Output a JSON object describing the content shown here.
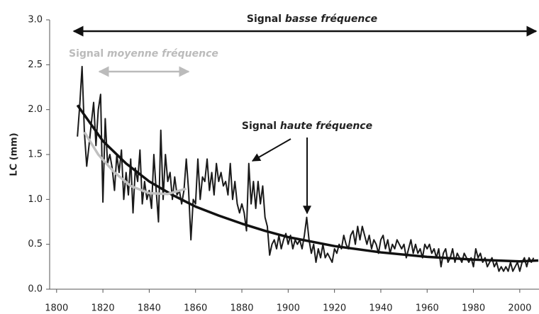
{
  "chart_data": {
    "type": "line",
    "y_label": "LC (mm)",
    "xlim": [
      1797,
      2008
    ],
    "ylim": [
      0,
      3
    ],
    "xticks": [
      1800,
      1820,
      1840,
      1860,
      1880,
      1900,
      1920,
      1940,
      1960,
      1980,
      2000
    ],
    "yticks": [
      {
        "value": 0,
        "label": "0.0"
      },
      0.5,
      {
        "value": 1,
        "label": "1.0"
      },
      1.5,
      {
        "value": 2,
        "label": "2.0"
      },
      2.5,
      {
        "value": 3,
        "label": "3.0"
      }
    ],
    "color": "#1a1a1a",
    "x": [
      1809,
      1810,
      1811,
      1812,
      1813,
      1814,
      1815,
      1816,
      1817,
      1818,
      1819,
      1820,
      1821,
      1822,
      1823,
      1824,
      1825,
      1826,
      1827,
      1828,
      1829,
      1830,
      1831,
      1832,
      1833,
      1834,
      1835,
      1836,
      1837,
      1838,
      1839,
      1840,
      1841,
      1842,
      1843,
      1844,
      1845,
      1846,
      1847,
      1848,
      1849,
      1850,
      1851,
      1852,
      1853,
      1854,
      1855,
      1856,
      1857,
      1858,
      1859,
      1860,
      1861,
      1862,
      1863,
      1864,
      1865,
      1866,
      1867,
      1868,
      1869,
      1870,
      1871,
      1872,
      1873,
      1874,
      1875,
      1876,
      1877,
      1878,
      1879,
      1880,
      1881,
      1882,
      1883,
      1884,
      1885,
      1886,
      1887,
      1888,
      1889,
      1890,
      1891,
      1892,
      1893,
      1894,
      1895,
      1896,
      1897,
      1898,
      1899,
      1900,
      1901,
      1902,
      1903,
      1904,
      1905,
      1906,
      1907,
      1908,
      1909,
      1910,
      1911,
      1912,
      1913,
      1914,
      1915,
      1916,
      1917,
      1918,
      1919,
      1920,
      1921,
      1922,
      1923,
      1924,
      1925,
      1926,
      1927,
      1928,
      1929,
      1930,
      1931,
      1932,
      1933,
      1934,
      1935,
      1936,
      1937,
      1938,
      1939,
      1940,
      1941,
      1942,
      1943,
      1944,
      1945,
      1946,
      1947,
      1948,
      1949,
      1950,
      1951,
      1952,
      1953,
      1954,
      1955,
      1956,
      1957,
      1958,
      1959,
      1960,
      1961,
      1962,
      1963,
      1964,
      1965,
      1966,
      1967,
      1968,
      1969,
      1970,
      1971,
      1972,
      1973,
      1974,
      1975,
      1976,
      1977,
      1978,
      1979,
      1980,
      1981,
      1982,
      1983,
      1984,
      1985,
      1986,
      1987,
      1988,
      1989,
      1990,
      1991,
      1992,
      1993,
      1994,
      1995,
      1996,
      1997,
      1998,
      1999,
      2000,
      2001,
      2002,
      2003,
      2004,
      2005,
      2006
    ],
    "values": [
      1.7,
      2.05,
      2.48,
      1.75,
      1.37,
      1.6,
      1.85,
      2.08,
      1.6,
      2.0,
      2.17,
      0.97,
      1.9,
      1.4,
      1.5,
      1.35,
      1.1,
      1.5,
      1.3,
      1.55,
      1.0,
      1.3,
      1.05,
      1.45,
      0.85,
      1.35,
      1.2,
      1.55,
      0.95,
      1.2,
      1.0,
      1.1,
      0.9,
      1.5,
      1.1,
      0.75,
      1.77,
      1.0,
      1.5,
      1.2,
      1.3,
      1.0,
      1.25,
      1.05,
      1.1,
      0.95,
      1.1,
      1.45,
      1.1,
      0.55,
      1.0,
      0.95,
      1.45,
      1.0,
      1.25,
      1.2,
      1.45,
      1.1,
      1.3,
      1.05,
      1.4,
      1.2,
      1.3,
      1.15,
      1.2,
      1.05,
      1.4,
      1.0,
      1.2,
      0.95,
      0.85,
      0.95,
      0.85,
      0.65,
      1.4,
      0.95,
      1.2,
      0.9,
      1.2,
      0.95,
      1.15,
      0.8,
      0.7,
      0.38,
      0.5,
      0.55,
      0.45,
      0.6,
      0.45,
      0.55,
      0.62,
      0.5,
      0.6,
      0.45,
      0.55,
      0.5,
      0.55,
      0.45,
      0.6,
      0.8,
      0.55,
      0.4,
      0.5,
      0.3,
      0.45,
      0.35,
      0.5,
      0.35,
      0.4,
      0.35,
      0.3,
      0.45,
      0.4,
      0.5,
      0.45,
      0.6,
      0.5,
      0.45,
      0.6,
      0.65,
      0.5,
      0.7,
      0.55,
      0.7,
      0.6,
      0.5,
      0.6,
      0.45,
      0.55,
      0.5,
      0.4,
      0.55,
      0.6,
      0.45,
      0.55,
      0.4,
      0.5,
      0.45,
      0.55,
      0.5,
      0.45,
      0.5,
      0.35,
      0.45,
      0.55,
      0.4,
      0.5,
      0.4,
      0.45,
      0.35,
      0.5,
      0.45,
      0.5,
      0.4,
      0.45,
      0.35,
      0.45,
      0.25,
      0.4,
      0.45,
      0.3,
      0.35,
      0.45,
      0.3,
      0.4,
      0.35,
      0.3,
      0.4,
      0.35,
      0.3,
      0.35,
      0.25,
      0.45,
      0.35,
      0.4,
      0.3,
      0.35,
      0.25,
      0.3,
      0.35,
      0.25,
      0.3,
      0.2,
      0.25,
      0.2,
      0.25,
      0.2,
      0.3,
      0.2,
      0.25,
      0.3,
      0.2,
      0.3,
      0.35,
      0.25,
      0.35,
      0.3,
      0.35
    ],
    "trend_curves": [
      {
        "color": "#111111",
        "x": [
          1809,
          1820,
          1830,
          1840,
          1850,
          1860,
          1870,
          1880,
          1890,
          1900,
          1920,
          1940,
          1960,
          1980,
          2000,
          2008
        ],
        "values": [
          2.05,
          1.65,
          1.4,
          1.2,
          1.05,
          0.92,
          0.82,
          0.73,
          0.65,
          0.58,
          0.48,
          0.41,
          0.36,
          0.33,
          0.31,
          0.32
        ]
      },
      {
        "color": "#c0c0c0",
        "x": [
          1812,
          1818,
          1825,
          1832,
          1840,
          1848,
          1856
        ],
        "values": [
          1.75,
          1.5,
          1.3,
          1.15,
          1.07,
          1.06,
          1.12
        ]
      }
    ],
    "annotations": [
      {
        "prefix": "Signal",
        "emphasis": "basse fréquence"
      },
      {
        "prefix": "Signal",
        "emphasis": "moyenne fréquence"
      },
      {
        "prefix": "Signal",
        "emphasis": "haute fréquence"
      }
    ]
  }
}
